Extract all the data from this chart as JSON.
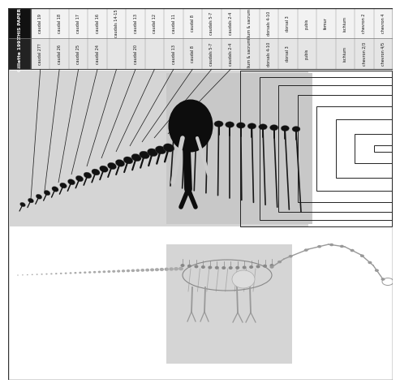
{
  "table_row1": [
    "THIS PAPER",
    "caudal 19",
    "caudal 18",
    "caudal 17",
    "caudal 16",
    "caudals 14-15",
    "caudal 13",
    "caudal 12",
    "caudal 11",
    "caudal 8",
    "caudals 5-7",
    "caudals 2-4",
    "ilium & sacrum",
    "dorsals 4-10",
    "dorsal 3",
    "pubis",
    "femur",
    "ischium",
    "chevron 2",
    "chevron 4"
  ],
  "table_row2": [
    "Gillette 1991",
    "caudal 27?",
    "caudal 26",
    "caudal 25",
    "caudal 24",
    "",
    "caudal 20",
    "",
    "caudal 13",
    "caudal 8",
    "caudals 5-7",
    "caudals 2-4",
    "ilium & sacrum",
    "dorsals 4-10",
    "dorsal 3",
    "pubis",
    "",
    "ischium",
    "chevron 2/3",
    "chevron 4/5"
  ],
  "bg_color": "#ffffff",
  "fig_width": 4.74,
  "fig_height": 4.58
}
